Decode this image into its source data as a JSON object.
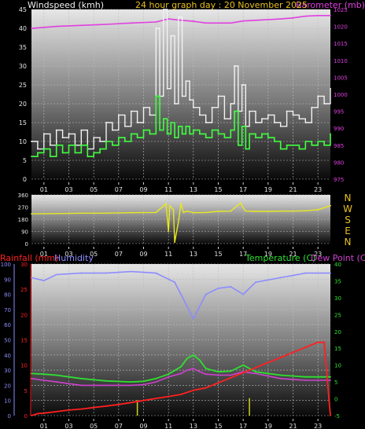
{
  "header": {
    "title": "24 hour graph day : 20 November 2025",
    "wind_label": "Windspeed (kmh)",
    "baro_label": "Barometer (mb)"
  },
  "direction_compass": [
    "N",
    "W",
    "S",
    "E",
    "N"
  ],
  "bottom_labels": {
    "rainfall": "Rainfall (mm)",
    "humidity": "Humidity",
    "temperature": "Temperature (C)",
    "dewpoint": "Dew Point (C)"
  },
  "colors": {
    "wind_gust": "#f2f2f2",
    "wind_avg": "#40ff40",
    "barometer": "#e040e0",
    "direction": "#e8e820",
    "rainfall": "#ff2020",
    "humidity": "#8c8cff",
    "temperature": "#30e030",
    "dewpoint": "#d040d0",
    "rain_rate": "#d0d020"
  },
  "chart_data": [
    {
      "type": "line",
      "x_unit": "hour",
      "xticks": [
        "01",
        "03",
        "05",
        "07",
        "09",
        "11",
        "13",
        "15",
        "17",
        "19",
        "21",
        "23"
      ],
      "y_left": {
        "label": "Windspeed (kmh)",
        "ylim": [
          0,
          45
        ],
        "ticks": [
          0,
          5,
          10,
          15,
          20,
          25,
          30,
          35,
          40,
          45
        ]
      },
      "y_right": {
        "label": "Barometer (mb)",
        "ylim": [
          975,
          1025
        ],
        "ticks": [
          975,
          980,
          985,
          990,
          995,
          1000,
          1005,
          1010,
          1015,
          1020,
          1025
        ]
      },
      "series": [
        {
          "axis": "left",
          "x": [
            0,
            0.5,
            1,
            1.5,
            2,
            2.5,
            3,
            3.5,
            4,
            4.5,
            5,
            5.5,
            6,
            6.5,
            7,
            7.5,
            8,
            8.5,
            9,
            9.5,
            10,
            10.3,
            10.6,
            10.9,
            11.2,
            11.5,
            11.8,
            12.1,
            12.4,
            12.7,
            13,
            13.5,
            14,
            14.5,
            15,
            15.5,
            16,
            16.3,
            16.6,
            16.9,
            17.2,
            17.5,
            18,
            18.5,
            19,
            19.5,
            20,
            20.5,
            21,
            21.5,
            22,
            22.5,
            23,
            23.5,
            24
          ],
          "values": [
            10,
            8,
            12,
            9,
            13,
            11,
            12,
            9,
            13,
            8,
            11,
            10,
            15,
            13,
            17,
            14,
            18,
            15,
            19,
            17,
            40,
            22,
            45,
            24,
            38,
            20,
            43,
            22,
            26,
            21,
            19,
            17,
            15,
            19,
            22,
            16,
            20,
            30,
            18,
            25,
            14,
            18,
            15,
            16,
            17,
            15,
            14,
            18,
            17,
            16,
            15,
            19,
            22,
            20,
            24
          ]
        },
        {
          "axis": "left",
          "x": [
            0,
            0.5,
            1,
            1.5,
            2,
            2.5,
            3,
            3.5,
            4,
            4.5,
            5,
            5.5,
            6,
            6.5,
            7,
            7.5,
            8,
            8.5,
            9,
            9.5,
            10,
            10.3,
            10.6,
            10.9,
            11.2,
            11.5,
            11.8,
            12.1,
            12.4,
            12.7,
            13,
            13.5,
            14,
            14.5,
            15,
            15.5,
            16,
            16.3,
            16.6,
            16.9,
            17.2,
            17.5,
            18,
            18.5,
            19,
            19.5,
            20,
            20.5,
            21,
            21.5,
            22,
            22.5,
            23,
            23.5,
            24
          ],
          "values": [
            6,
            7,
            8,
            6,
            9,
            7,
            9,
            7,
            9,
            6,
            7,
            8,
            10,
            9,
            11,
            10,
            12,
            11,
            13,
            12,
            22,
            13,
            16,
            12,
            15,
            11,
            14,
            12,
            14,
            12,
            13,
            12,
            11,
            13,
            12,
            11,
            13,
            18,
            9,
            14,
            8,
            12,
            11,
            12,
            11,
            10,
            8,
            9,
            9,
            8,
            10,
            9,
            10,
            9,
            12
          ]
        },
        {
          "axis": "right",
          "x": [
            0,
            2,
            4,
            6,
            8,
            10,
            11,
            12,
            13,
            14,
            15,
            16,
            17,
            18,
            19,
            20,
            21,
            22,
            23,
            24
          ],
          "values": [
            1019.4,
            1020,
            1020.3,
            1020.6,
            1021,
            1021.3,
            1022.2,
            1021.8,
            1021.5,
            1021,
            1021,
            1021,
            1021.6,
            1021.8,
            1022,
            1022.2,
            1022.5,
            1023,
            1023.2,
            1023.2
          ]
        }
      ]
    },
    {
      "type": "line",
      "x_unit": "hour",
      "xticks": [
        "01",
        "03",
        "05",
        "07",
        "09",
        "11",
        "13",
        "15",
        "17",
        "19",
        "21",
        "23"
      ],
      "y_left": {
        "label": "Wind direction",
        "ylim": [
          0,
          360
        ],
        "ticks": [
          0,
          90,
          180,
          270,
          360
        ]
      },
      "series": [
        {
          "x": [
            0,
            2,
            4,
            6,
            8,
            10,
            10.8,
            11,
            11.1,
            11.4,
            11.5,
            11.8,
            12,
            12.2,
            12.5,
            13,
            14,
            15,
            16,
            16.8,
            17,
            17.2,
            18,
            19,
            20,
            21,
            22,
            23,
            24
          ],
          "values": [
            220,
            222,
            225,
            225,
            228,
            230,
            295,
            90,
            280,
            250,
            10,
            160,
            295,
            230,
            240,
            228,
            230,
            238,
            240,
            300,
            265,
            240,
            238,
            238,
            240,
            240,
            242,
            250,
            280
          ]
        }
      ]
    },
    {
      "type": "line",
      "x_unit": "hour",
      "xticks": [
        "01",
        "03",
        "05",
        "07",
        "09",
        "11",
        "13",
        "15",
        "17",
        "19",
        "21",
        "23"
      ],
      "y_left": {
        "label": "Humidity",
        "ylim": [
          0,
          100
        ],
        "ticks": [
          0,
          10,
          20,
          30,
          40,
          50,
          60,
          70,
          80,
          90,
          100
        ]
      },
      "y_left2": {
        "label": "Rainfall (mm)",
        "ylim": [
          0,
          30
        ],
        "ticks": [
          0,
          5,
          10,
          15,
          20,
          25,
          30
        ]
      },
      "y_right": {
        "label": "Temperature (C) / Dew Point (C)",
        "ylim": [
          -5,
          40
        ],
        "ticks": [
          -5,
          0,
          5,
          10,
          15,
          20,
          25,
          30,
          35,
          40
        ]
      },
      "series": [
        {
          "axis": "left",
          "x": [
            0,
            1,
            2,
            4,
            6,
            8,
            10,
            11,
            11.5,
            12,
            12.5,
            13,
            13.5,
            14,
            15,
            16,
            17,
            18,
            20,
            22,
            24
          ],
          "values": [
            91,
            89,
            93,
            94,
            94,
            95,
            94,
            90,
            88,
            80,
            72,
            64,
            72,
            80,
            84,
            85,
            80,
            88,
            91,
            94,
            94
          ]
        },
        {
          "axis": "left2",
          "x": [
            0,
            0.5,
            1,
            2,
            3,
            4,
            5,
            6,
            7,
            8,
            9,
            10,
            11,
            12,
            13,
            14,
            15,
            16,
            17,
            18,
            19,
            20,
            21,
            22,
            23,
            23.5,
            24
          ],
          "values": [
            0,
            0.4,
            0.5,
            0.8,
            1.1,
            1.3,
            1.6,
            1.9,
            2.2,
            2.6,
            3.0,
            3.4,
            3.8,
            4.2,
            5,
            5.5,
            6.5,
            7.5,
            8.5,
            9.5,
            10.5,
            11.5,
            12.5,
            13.5,
            14.5,
            14.5,
            0
          ]
        },
        {
          "axis": "right",
          "x": [
            0,
            1,
            2,
            4,
            6,
            8,
            9,
            10,
            11,
            12,
            12.5,
            13,
            13.5,
            14,
            15,
            16,
            17,
            18,
            20,
            22,
            24
          ],
          "values": [
            7.5,
            7.3,
            7,
            6,
            5.3,
            5,
            5.2,
            6,
            7.3,
            9.5,
            12,
            13,
            11.5,
            9,
            8,
            8.2,
            10,
            8,
            7,
            6.5,
            6.5
          ]
        },
        {
          "axis": "right",
          "x": [
            0,
            1,
            2,
            4,
            6,
            8,
            9,
            10,
            11,
            12,
            12.5,
            13,
            13.5,
            14,
            15,
            16,
            17,
            18,
            20,
            22,
            24
          ],
          "values": [
            6,
            5.5,
            5,
            4,
            4,
            4,
            4.2,
            5,
            6.5,
            7.5,
            8.5,
            9,
            8,
            7.3,
            7,
            7,
            8,
            7.5,
            6,
            5.5,
            5.5
          ]
        },
        {
          "axis": "left2",
          "x": [
            8.5,
            17.5
          ],
          "values": [
            1.2,
            1.6
          ]
        }
      ]
    }
  ]
}
